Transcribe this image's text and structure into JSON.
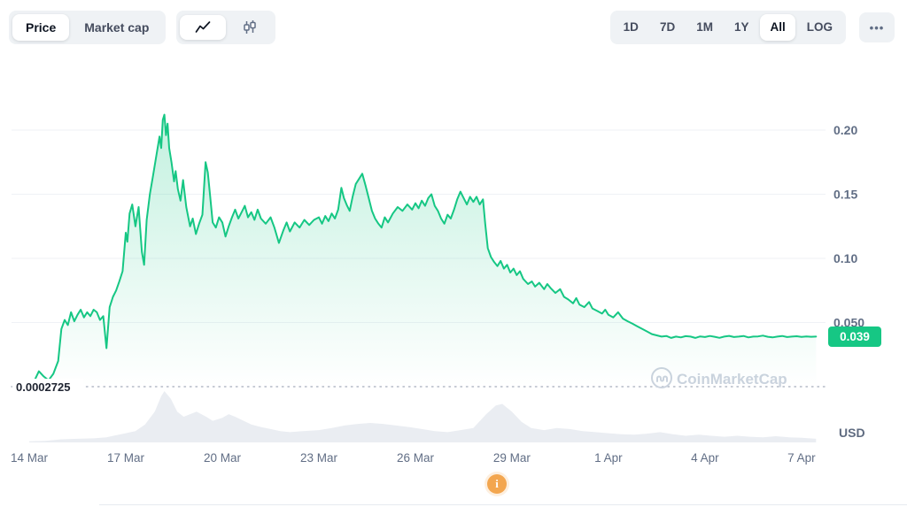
{
  "toolbar": {
    "view_tabs": [
      {
        "label": "Price",
        "active": true
      },
      {
        "label": "Market cap",
        "active": false
      }
    ],
    "chart_types": [
      {
        "name": "line-chart",
        "active": true
      },
      {
        "name": "candlestick-chart",
        "active": false
      }
    ],
    "ranges": [
      {
        "label": "1D",
        "active": false
      },
      {
        "label": "7D",
        "active": false
      },
      {
        "label": "1M",
        "active": false
      },
      {
        "label": "1Y",
        "active": false
      },
      {
        "label": "All",
        "active": true
      },
      {
        "label": "LOG",
        "active": false
      }
    ],
    "more_label": "•••"
  },
  "footer": {
    "info_icon": "i"
  },
  "chart_data": {
    "type": "area",
    "title": "",
    "unit": "USD",
    "watermark": "CoinMarketCap",
    "x_unit": "days since 14 Mar",
    "x_domain": [
      0,
      24.45
    ],
    "y_domain": [
      0,
      0.22
    ],
    "grid": true,
    "x_ticks": [
      "14 Mar",
      "17 Mar",
      "20 Mar",
      "23 Mar",
      "26 Mar",
      "29 Mar",
      "1 Apr",
      "4 Apr",
      "7 Apr"
    ],
    "y_ticks": [
      {
        "label": "0.20",
        "value": 0.2
      },
      {
        "label": "0.15",
        "value": 0.15
      },
      {
        "label": "0.10",
        "value": 0.1
      },
      {
        "label": "0.050",
        "value": 0.05
      }
    ],
    "baseline": {
      "label": "0.0002725",
      "value": 0.0002725
    },
    "current": {
      "label": "0.039",
      "value": 0.039,
      "color": "#16c784"
    },
    "colors": {
      "line": "#16c784",
      "grid": "#eff2f6",
      "axis_text": "#616e85",
      "volume": "#eaedf2",
      "watermark": "#cbd3de",
      "dotted": "#b3bac6"
    },
    "series": [
      {
        "name": "price",
        "color": "#16c784",
        "points": [
          [
            0,
            0.0003
          ],
          [
            0.15,
            0.004
          ],
          [
            0.3,
            0.012
          ],
          [
            0.45,
            0.008
          ],
          [
            0.6,
            0.005
          ],
          [
            0.75,
            0.01
          ],
          [
            0.9,
            0.02
          ],
          [
            1,
            0.045
          ],
          [
            1.1,
            0.052
          ],
          [
            1.2,
            0.048
          ],
          [
            1.3,
            0.058
          ],
          [
            1.4,
            0.051
          ],
          [
            1.5,
            0.056
          ],
          [
            1.6,
            0.06
          ],
          [
            1.7,
            0.054
          ],
          [
            1.8,
            0.058
          ],
          [
            1.9,
            0.055
          ],
          [
            2,
            0.06
          ],
          [
            2.1,
            0.058
          ],
          [
            2.2,
            0.052
          ],
          [
            2.3,
            0.055
          ],
          [
            2.4,
            0.03
          ],
          [
            2.5,
            0.062
          ],
          [
            2.6,
            0.07
          ],
          [
            2.7,
            0.075
          ],
          [
            2.8,
            0.082
          ],
          [
            2.9,
            0.09
          ],
          [
            3,
            0.12
          ],
          [
            3.05,
            0.113
          ],
          [
            3.12,
            0.135
          ],
          [
            3.2,
            0.142
          ],
          [
            3.3,
            0.125
          ],
          [
            3.4,
            0.14
          ],
          [
            3.5,
            0.105
          ],
          [
            3.57,
            0.095
          ],
          [
            3.65,
            0.13
          ],
          [
            3.75,
            0.15
          ],
          [
            3.85,
            0.165
          ],
          [
            3.95,
            0.18
          ],
          [
            4.05,
            0.195
          ],
          [
            4.1,
            0.186
          ],
          [
            4.15,
            0.208
          ],
          [
            4.2,
            0.212
          ],
          [
            4.25,
            0.196
          ],
          [
            4.3,
            0.205
          ],
          [
            4.35,
            0.186
          ],
          [
            4.42,
            0.175
          ],
          [
            4.5,
            0.16
          ],
          [
            4.55,
            0.168
          ],
          [
            4.62,
            0.154
          ],
          [
            4.7,
            0.145
          ],
          [
            4.78,
            0.161
          ],
          [
            4.88,
            0.14
          ],
          [
            5,
            0.125
          ],
          [
            5.08,
            0.131
          ],
          [
            5.18,
            0.119
          ],
          [
            5.28,
            0.127
          ],
          [
            5.38,
            0.134
          ],
          [
            5.48,
            0.175
          ],
          [
            5.55,
            0.167
          ],
          [
            5.62,
            0.149
          ],
          [
            5.7,
            0.128
          ],
          [
            5.8,
            0.124
          ],
          [
            5.9,
            0.132
          ],
          [
            6,
            0.128
          ],
          [
            6.1,
            0.117
          ],
          [
            6.2,
            0.125
          ],
          [
            6.3,
            0.132
          ],
          [
            6.4,
            0.138
          ],
          [
            6.5,
            0.131
          ],
          [
            6.6,
            0.136
          ],
          [
            6.7,
            0.141
          ],
          [
            6.8,
            0.132
          ],
          [
            6.9,
            0.136
          ],
          [
            7,
            0.13
          ],
          [
            7.1,
            0.138
          ],
          [
            7.2,
            0.131
          ],
          [
            7.35,
            0.127
          ],
          [
            7.5,
            0.132
          ],
          [
            7.62,
            0.124
          ],
          [
            7.76,
            0.112
          ],
          [
            7.9,
            0.122
          ],
          [
            8,
            0.128
          ],
          [
            8.1,
            0.121
          ],
          [
            8.25,
            0.128
          ],
          [
            8.4,
            0.124
          ],
          [
            8.55,
            0.13
          ],
          [
            8.7,
            0.126
          ],
          [
            8.85,
            0.13
          ],
          [
            9,
            0.132
          ],
          [
            9.1,
            0.127
          ],
          [
            9.2,
            0.133
          ],
          [
            9.3,
            0.129
          ],
          [
            9.4,
            0.135
          ],
          [
            9.5,
            0.131
          ],
          [
            9.6,
            0.138
          ],
          [
            9.7,
            0.155
          ],
          [
            9.78,
            0.147
          ],
          [
            9.88,
            0.141
          ],
          [
            9.96,
            0.137
          ],
          [
            10.05,
            0.148
          ],
          [
            10.15,
            0.158
          ],
          [
            10.25,
            0.162
          ],
          [
            10.35,
            0.166
          ],
          [
            10.45,
            0.157
          ],
          [
            10.55,
            0.147
          ],
          [
            10.65,
            0.137
          ],
          [
            10.75,
            0.131
          ],
          [
            10.85,
            0.127
          ],
          [
            10.95,
            0.124
          ],
          [
            11.05,
            0.132
          ],
          [
            11.15,
            0.128
          ],
          [
            11.3,
            0.135
          ],
          [
            11.45,
            0.14
          ],
          [
            11.6,
            0.137
          ],
          [
            11.75,
            0.142
          ],
          [
            11.9,
            0.138
          ],
          [
            12,
            0.143
          ],
          [
            12.1,
            0.139
          ],
          [
            12.2,
            0.145
          ],
          [
            12.3,
            0.141
          ],
          [
            12.4,
            0.147
          ],
          [
            12.5,
            0.15
          ],
          [
            12.6,
            0.141
          ],
          [
            12.7,
            0.137
          ],
          [
            12.8,
            0.131
          ],
          [
            12.9,
            0.127
          ],
          [
            13,
            0.134
          ],
          [
            13.1,
            0.131
          ],
          [
            13.2,
            0.138
          ],
          [
            13.3,
            0.146
          ],
          [
            13.4,
            0.152
          ],
          [
            13.5,
            0.147
          ],
          [
            13.6,
            0.142
          ],
          [
            13.7,
            0.148
          ],
          [
            13.8,
            0.144
          ],
          [
            13.9,
            0.148
          ],
          [
            14,
            0.142
          ],
          [
            14.1,
            0.146
          ],
          [
            14.17,
            0.127
          ],
          [
            14.25,
            0.108
          ],
          [
            14.35,
            0.101
          ],
          [
            14.45,
            0.097
          ],
          [
            14.55,
            0.094
          ],
          [
            14.65,
            0.098
          ],
          [
            14.75,
            0.092
          ],
          [
            14.85,
            0.095
          ],
          [
            14.95,
            0.089
          ],
          [
            15.05,
            0.092
          ],
          [
            15.15,
            0.087
          ],
          [
            15.25,
            0.09
          ],
          [
            15.35,
            0.084
          ],
          [
            15.5,
            0.08
          ],
          [
            15.62,
            0.082
          ],
          [
            15.72,
            0.078
          ],
          [
            15.85,
            0.081
          ],
          [
            16,
            0.076
          ],
          [
            16.1,
            0.08
          ],
          [
            16.2,
            0.077
          ],
          [
            16.35,
            0.073
          ],
          [
            16.5,
            0.076
          ],
          [
            16.62,
            0.07
          ],
          [
            16.75,
            0.068
          ],
          [
            16.9,
            0.065
          ],
          [
            17,
            0.069
          ],
          [
            17.1,
            0.064
          ],
          [
            17.25,
            0.062
          ],
          [
            17.4,
            0.066
          ],
          [
            17.5,
            0.061
          ],
          [
            17.65,
            0.059
          ],
          [
            17.8,
            0.057
          ],
          [
            17.9,
            0.06
          ],
          [
            18,
            0.056
          ],
          [
            18.15,
            0.054
          ],
          [
            18.3,
            0.058
          ],
          [
            18.45,
            0.053
          ],
          [
            18.6,
            0.051
          ],
          [
            18.75,
            0.049
          ],
          [
            18.9,
            0.047
          ],
          [
            19.05,
            0.045
          ],
          [
            19.2,
            0.043
          ],
          [
            19.35,
            0.041
          ],
          [
            19.5,
            0.04
          ],
          [
            19.65,
            0.039
          ],
          [
            19.8,
            0.0395
          ],
          [
            19.95,
            0.038
          ],
          [
            20.1,
            0.039
          ],
          [
            20.25,
            0.0384
          ],
          [
            20.4,
            0.0394
          ],
          [
            20.55,
            0.039
          ],
          [
            20.7,
            0.038
          ],
          [
            20.85,
            0.0392
          ],
          [
            21,
            0.0387
          ],
          [
            21.15,
            0.0395
          ],
          [
            21.3,
            0.0389
          ],
          [
            21.45,
            0.0381
          ],
          [
            21.6,
            0.039
          ],
          [
            21.75,
            0.0396
          ],
          [
            21.9,
            0.0387
          ],
          [
            22.05,
            0.039
          ],
          [
            22.2,
            0.0395
          ],
          [
            22.35,
            0.0384
          ],
          [
            22.5,
            0.039
          ],
          [
            22.65,
            0.0392
          ],
          [
            22.8,
            0.0398
          ],
          [
            22.95,
            0.0389
          ],
          [
            23.1,
            0.0384
          ],
          [
            23.25,
            0.039
          ],
          [
            23.4,
            0.0395
          ],
          [
            23.55,
            0.0387
          ],
          [
            23.7,
            0.039
          ],
          [
            23.85,
            0.0393
          ],
          [
            24,
            0.0388
          ],
          [
            24.15,
            0.0392
          ],
          [
            24.3,
            0.0389
          ],
          [
            24.45,
            0.039
          ]
        ]
      },
      {
        "name": "volume",
        "color": "#eaedf2",
        "points": [
          [
            0,
            0.02
          ],
          [
            0.5,
            0.03
          ],
          [
            1,
            0.06
          ],
          [
            1.5,
            0.07
          ],
          [
            2,
            0.08
          ],
          [
            2.4,
            0.1
          ],
          [
            2.7,
            0.14
          ],
          [
            3,
            0.18
          ],
          [
            3.3,
            0.22
          ],
          [
            3.6,
            0.35
          ],
          [
            3.9,
            0.6
          ],
          [
            4.1,
            0.9
          ],
          [
            4.2,
            1
          ],
          [
            4.4,
            0.85
          ],
          [
            4.6,
            0.6
          ],
          [
            4.8,
            0.5
          ],
          [
            5,
            0.55
          ],
          [
            5.2,
            0.6
          ],
          [
            5.5,
            0.5
          ],
          [
            5.7,
            0.42
          ],
          [
            6,
            0.48
          ],
          [
            6.2,
            0.55
          ],
          [
            6.4,
            0.5
          ],
          [
            6.6,
            0.44
          ],
          [
            6.9,
            0.35
          ],
          [
            7.2,
            0.3
          ],
          [
            7.5,
            0.26
          ],
          [
            7.8,
            0.22
          ],
          [
            8.1,
            0.2
          ],
          [
            8.5,
            0.22
          ],
          [
            9,
            0.24
          ],
          [
            9.4,
            0.28
          ],
          [
            9.8,
            0.33
          ],
          [
            10.2,
            0.36
          ],
          [
            10.6,
            0.38
          ],
          [
            11,
            0.36
          ],
          [
            11.4,
            0.33
          ],
          [
            11.8,
            0.3
          ],
          [
            12.2,
            0.26
          ],
          [
            12.6,
            0.22
          ],
          [
            13,
            0.2
          ],
          [
            13.4,
            0.24
          ],
          [
            13.8,
            0.28
          ],
          [
            14.2,
            0.55
          ],
          [
            14.5,
            0.72
          ],
          [
            14.7,
            0.75
          ],
          [
            15,
            0.6
          ],
          [
            15.3,
            0.4
          ],
          [
            15.6,
            0.28
          ],
          [
            16,
            0.24
          ],
          [
            16.4,
            0.28
          ],
          [
            16.8,
            0.26
          ],
          [
            17.2,
            0.22
          ],
          [
            17.6,
            0.2
          ],
          [
            18,
            0.18
          ],
          [
            18.4,
            0.16
          ],
          [
            18.8,
            0.15
          ],
          [
            19.2,
            0.17
          ],
          [
            19.6,
            0.2
          ],
          [
            20,
            0.16
          ],
          [
            20.4,
            0.13
          ],
          [
            20.8,
            0.15
          ],
          [
            21.2,
            0.13
          ],
          [
            21.6,
            0.11
          ],
          [
            22,
            0.13
          ],
          [
            22.4,
            0.11
          ],
          [
            22.8,
            0.1
          ],
          [
            23.2,
            0.12
          ],
          [
            23.6,
            0.1
          ],
          [
            24,
            0.09
          ],
          [
            24.45,
            0.07
          ]
        ]
      }
    ]
  }
}
